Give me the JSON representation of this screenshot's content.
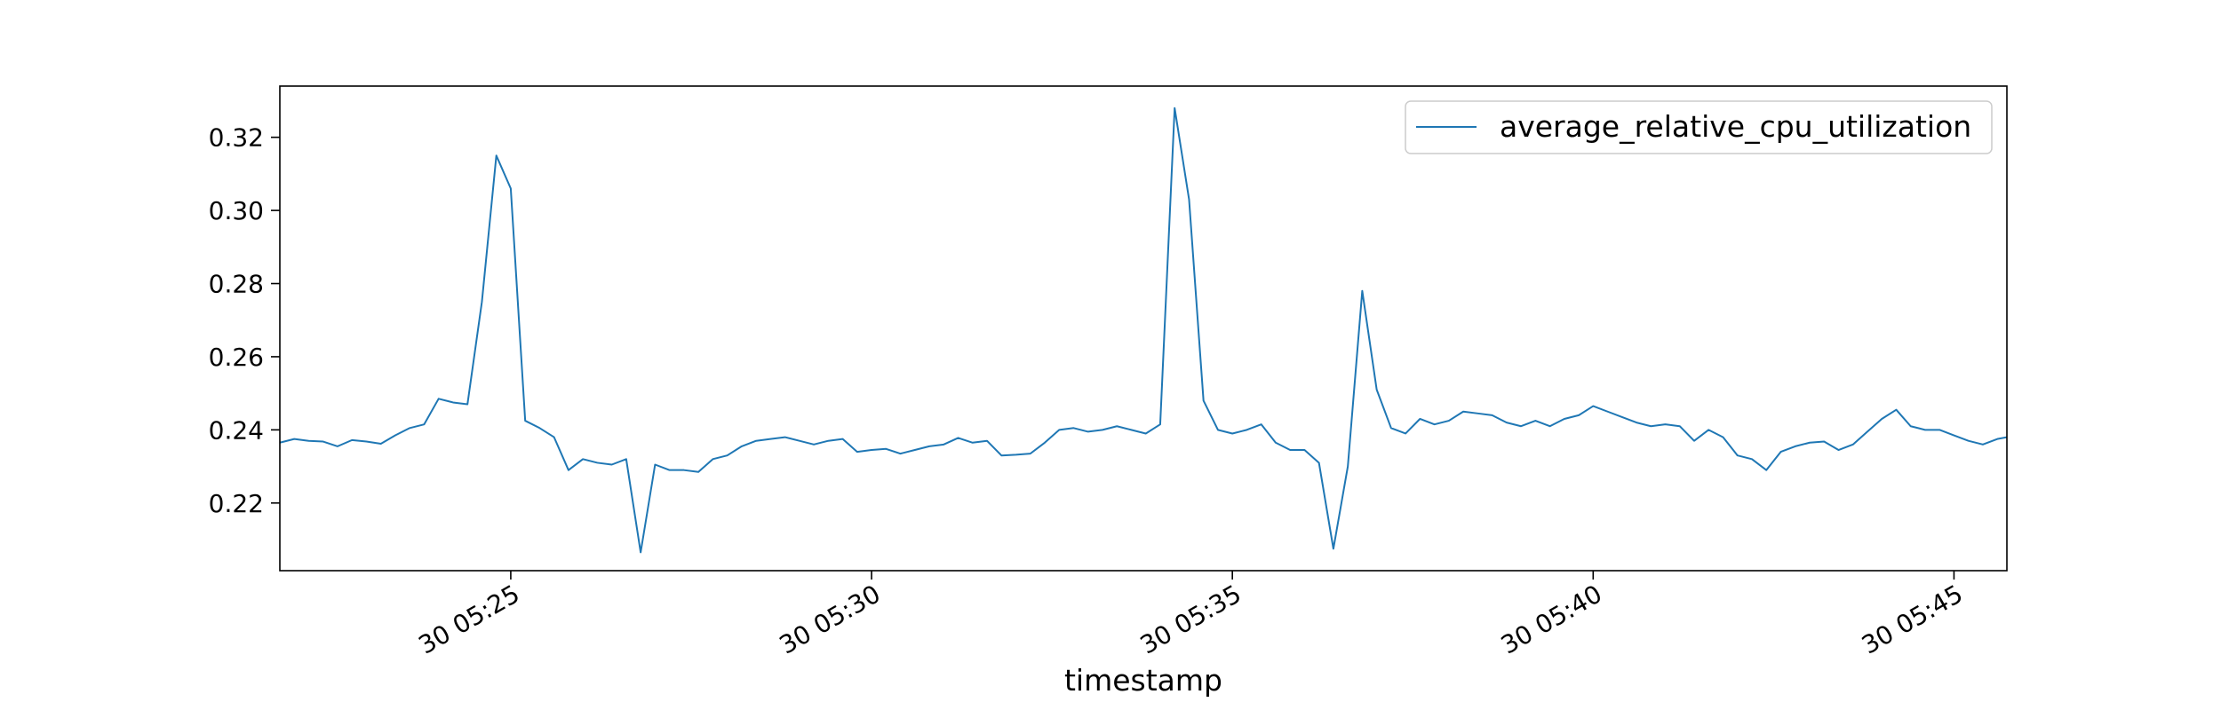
{
  "chart_data": {
    "type": "line",
    "title": "",
    "xlabel": "timestamp",
    "ylabel": "",
    "x_range": [
      "2025-01-30T05:21:48",
      "2025-01-30T05:45:44"
    ],
    "ylim": [
      0.2015,
      0.334
    ],
    "x_ticks": [
      {
        "at": "2025-01-30T05:25:00",
        "label": "30 05:25"
      },
      {
        "at": "2025-01-30T05:30:00",
        "label": "30 05:30"
      },
      {
        "at": "2025-01-30T05:35:00",
        "label": "30 05:35"
      },
      {
        "at": "2025-01-30T05:40:00",
        "label": "30 05:40"
      },
      {
        "at": "2025-01-30T05:45:00",
        "label": "30 05:45"
      }
    ],
    "y_ticks": [
      {
        "value": 0.22,
        "label": "0.22"
      },
      {
        "value": 0.24,
        "label": "0.24"
      },
      {
        "value": 0.26,
        "label": "0.26"
      },
      {
        "value": 0.28,
        "label": "0.28"
      },
      {
        "value": 0.3,
        "label": "0.30"
      },
      {
        "value": 0.32,
        "label": "0.32"
      }
    ],
    "grid": false,
    "legend": {
      "placement": "upper-right"
    },
    "series": [
      {
        "name": "average_relative_cpu_utilization",
        "color": "#1f77b4",
        "x": [
          "2025-01-30T05:21:48",
          "2025-01-30T05:22:00",
          "2025-01-30T05:22:12",
          "2025-01-30T05:22:24",
          "2025-01-30T05:22:36",
          "2025-01-30T05:22:48",
          "2025-01-30T05:23:00",
          "2025-01-30T05:23:12",
          "2025-01-30T05:23:24",
          "2025-01-30T05:23:36",
          "2025-01-30T05:23:48",
          "2025-01-30T05:24:00",
          "2025-01-30T05:24:12",
          "2025-01-30T05:24:24",
          "2025-01-30T05:24:36",
          "2025-01-30T05:24:48",
          "2025-01-30T05:25:00",
          "2025-01-30T05:25:12",
          "2025-01-30T05:25:24",
          "2025-01-30T05:25:36",
          "2025-01-30T05:25:48",
          "2025-01-30T05:26:00",
          "2025-01-30T05:26:12",
          "2025-01-30T05:26:24",
          "2025-01-30T05:26:36",
          "2025-01-30T05:26:48",
          "2025-01-30T05:27:00",
          "2025-01-30T05:27:12",
          "2025-01-30T05:27:24",
          "2025-01-30T05:27:36",
          "2025-01-30T05:27:48",
          "2025-01-30T05:28:00",
          "2025-01-30T05:28:12",
          "2025-01-30T05:28:24",
          "2025-01-30T05:28:36",
          "2025-01-30T05:28:48",
          "2025-01-30T05:29:00",
          "2025-01-30T05:29:12",
          "2025-01-30T05:29:24",
          "2025-01-30T05:29:36",
          "2025-01-30T05:29:48",
          "2025-01-30T05:30:00",
          "2025-01-30T05:30:12",
          "2025-01-30T05:30:24",
          "2025-01-30T05:30:36",
          "2025-01-30T05:30:48",
          "2025-01-30T05:31:00",
          "2025-01-30T05:31:12",
          "2025-01-30T05:31:24",
          "2025-01-30T05:31:36",
          "2025-01-30T05:31:48",
          "2025-01-30T05:32:00",
          "2025-01-30T05:32:12",
          "2025-01-30T05:32:24",
          "2025-01-30T05:32:36",
          "2025-01-30T05:32:48",
          "2025-01-30T05:33:00",
          "2025-01-30T05:33:12",
          "2025-01-30T05:33:24",
          "2025-01-30T05:33:36",
          "2025-01-30T05:33:48",
          "2025-01-30T05:34:00",
          "2025-01-30T05:34:12",
          "2025-01-30T05:34:24",
          "2025-01-30T05:34:36",
          "2025-01-30T05:34:48",
          "2025-01-30T05:35:00",
          "2025-01-30T05:35:12",
          "2025-01-30T05:35:24",
          "2025-01-30T05:35:36",
          "2025-01-30T05:35:48",
          "2025-01-30T05:36:00",
          "2025-01-30T05:36:12",
          "2025-01-30T05:36:24",
          "2025-01-30T05:36:36",
          "2025-01-30T05:36:48",
          "2025-01-30T05:37:00",
          "2025-01-30T05:37:12",
          "2025-01-30T05:37:24",
          "2025-01-30T05:37:36",
          "2025-01-30T05:37:48",
          "2025-01-30T05:38:00",
          "2025-01-30T05:38:12",
          "2025-01-30T05:38:24",
          "2025-01-30T05:38:36",
          "2025-01-30T05:38:48",
          "2025-01-30T05:39:00",
          "2025-01-30T05:39:12",
          "2025-01-30T05:39:24",
          "2025-01-30T05:39:36",
          "2025-01-30T05:39:48",
          "2025-01-30T05:40:00",
          "2025-01-30T05:40:12",
          "2025-01-30T05:40:24",
          "2025-01-30T05:40:36",
          "2025-01-30T05:40:48",
          "2025-01-30T05:41:00",
          "2025-01-30T05:41:12",
          "2025-01-30T05:41:24",
          "2025-01-30T05:41:36",
          "2025-01-30T05:41:48",
          "2025-01-30T05:42:00",
          "2025-01-30T05:42:12",
          "2025-01-30T05:42:24",
          "2025-01-30T05:42:36",
          "2025-01-30T05:42:48",
          "2025-01-30T05:43:00",
          "2025-01-30T05:43:12",
          "2025-01-30T05:43:24",
          "2025-01-30T05:43:36",
          "2025-01-30T05:43:48",
          "2025-01-30T05:44:00",
          "2025-01-30T05:44:12",
          "2025-01-30T05:44:24",
          "2025-01-30T05:44:36",
          "2025-01-30T05:44:48",
          "2025-01-30T05:45:00",
          "2025-01-30T05:45:12",
          "2025-01-30T05:45:24",
          "2025-01-30T05:45:36",
          "2025-01-30T05:45:44"
        ],
        "y": [
          0.2365,
          0.2375,
          0.237,
          0.2368,
          0.2355,
          0.2372,
          0.2368,
          0.2362,
          0.2385,
          0.2405,
          0.2415,
          0.2485,
          0.2475,
          0.247,
          0.275,
          0.315,
          0.306,
          0.2425,
          0.2405,
          0.238,
          0.229,
          0.232,
          0.231,
          0.2305,
          0.232,
          0.2065,
          0.2305,
          0.229,
          0.229,
          0.2285,
          0.232,
          0.233,
          0.2355,
          0.237,
          0.2375,
          0.238,
          0.237,
          0.236,
          0.237,
          0.2375,
          0.234,
          0.2345,
          0.2348,
          0.2335,
          0.2345,
          0.2355,
          0.236,
          0.2378,
          0.2365,
          0.237,
          0.233,
          0.2332,
          0.2335,
          0.2365,
          0.24,
          0.2405,
          0.2395,
          0.24,
          0.241,
          0.24,
          0.239,
          0.2415,
          0.328,
          0.303,
          0.248,
          0.24,
          0.239,
          0.24,
          0.2415,
          0.2365,
          0.2345,
          0.2345,
          0.231,
          0.2075,
          0.23,
          0.278,
          0.251,
          0.2405,
          0.239,
          0.243,
          0.2415,
          0.2425,
          0.245,
          0.2445,
          0.244,
          0.242,
          0.241,
          0.2425,
          0.241,
          0.243,
          0.244,
          0.2465,
          0.245,
          0.2435,
          0.242,
          0.241,
          0.2415,
          0.241,
          0.237,
          0.24,
          0.238,
          0.233,
          0.232,
          0.229,
          0.234,
          0.2355,
          0.2365,
          0.2368,
          0.2345,
          0.236,
          0.2395,
          0.243,
          0.2455,
          0.241,
          0.24,
          0.24,
          0.2385,
          0.237,
          0.236,
          0.2375,
          0.238
        ]
      }
    ]
  }
}
